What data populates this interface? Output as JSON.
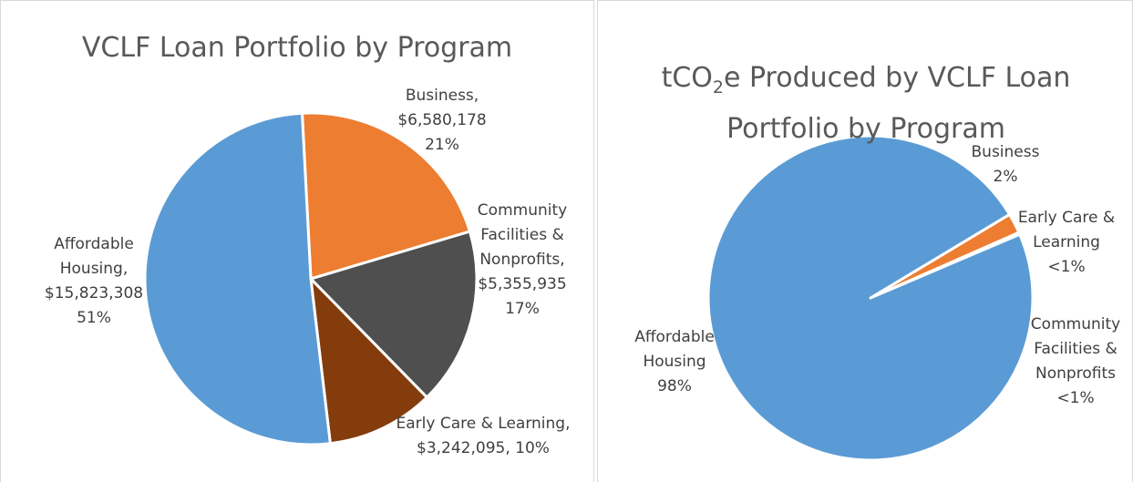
{
  "chart_data": [
    {
      "type": "pie",
      "title": "VCLF Loan Portfolio by Program",
      "categories": [
        "Business,",
        "Community Facilities & Nonprofits,",
        "Early Care & Learning,",
        "Affordable Housing,"
      ],
      "values": [
        6580178,
        5355935,
        3242095,
        15823308
      ],
      "value_labels": [
        "$6,580,178",
        "$5,355,935",
        "$3,242,095,",
        "$15,823,308"
      ],
      "percent_labels": [
        "21%",
        "17%",
        "10%",
        "51%"
      ],
      "colors": [
        "#ed7d31",
        "#4f4f4f",
        "#843c0c",
        "#5b9bd5"
      ]
    },
    {
      "type": "pie",
      "title": {
        "prefix": "tCO",
        "subscript": "2",
        "suffix": "e Produced by VCLF Loan Portfolio by Program"
      },
      "categories": [
        "Business",
        "Early Care & Learning",
        "Community Facilities & Nonprofits",
        "Affordable Housing"
      ],
      "values": [
        2,
        0.1,
        0.1,
        97.8
      ],
      "value_labels": [
        "2%",
        "<1%",
        "<1%",
        "98%"
      ],
      "colors": [
        "#ed7d31",
        "#5b9bd5",
        "#5b9bd5",
        "#5b9bd5"
      ]
    }
  ]
}
